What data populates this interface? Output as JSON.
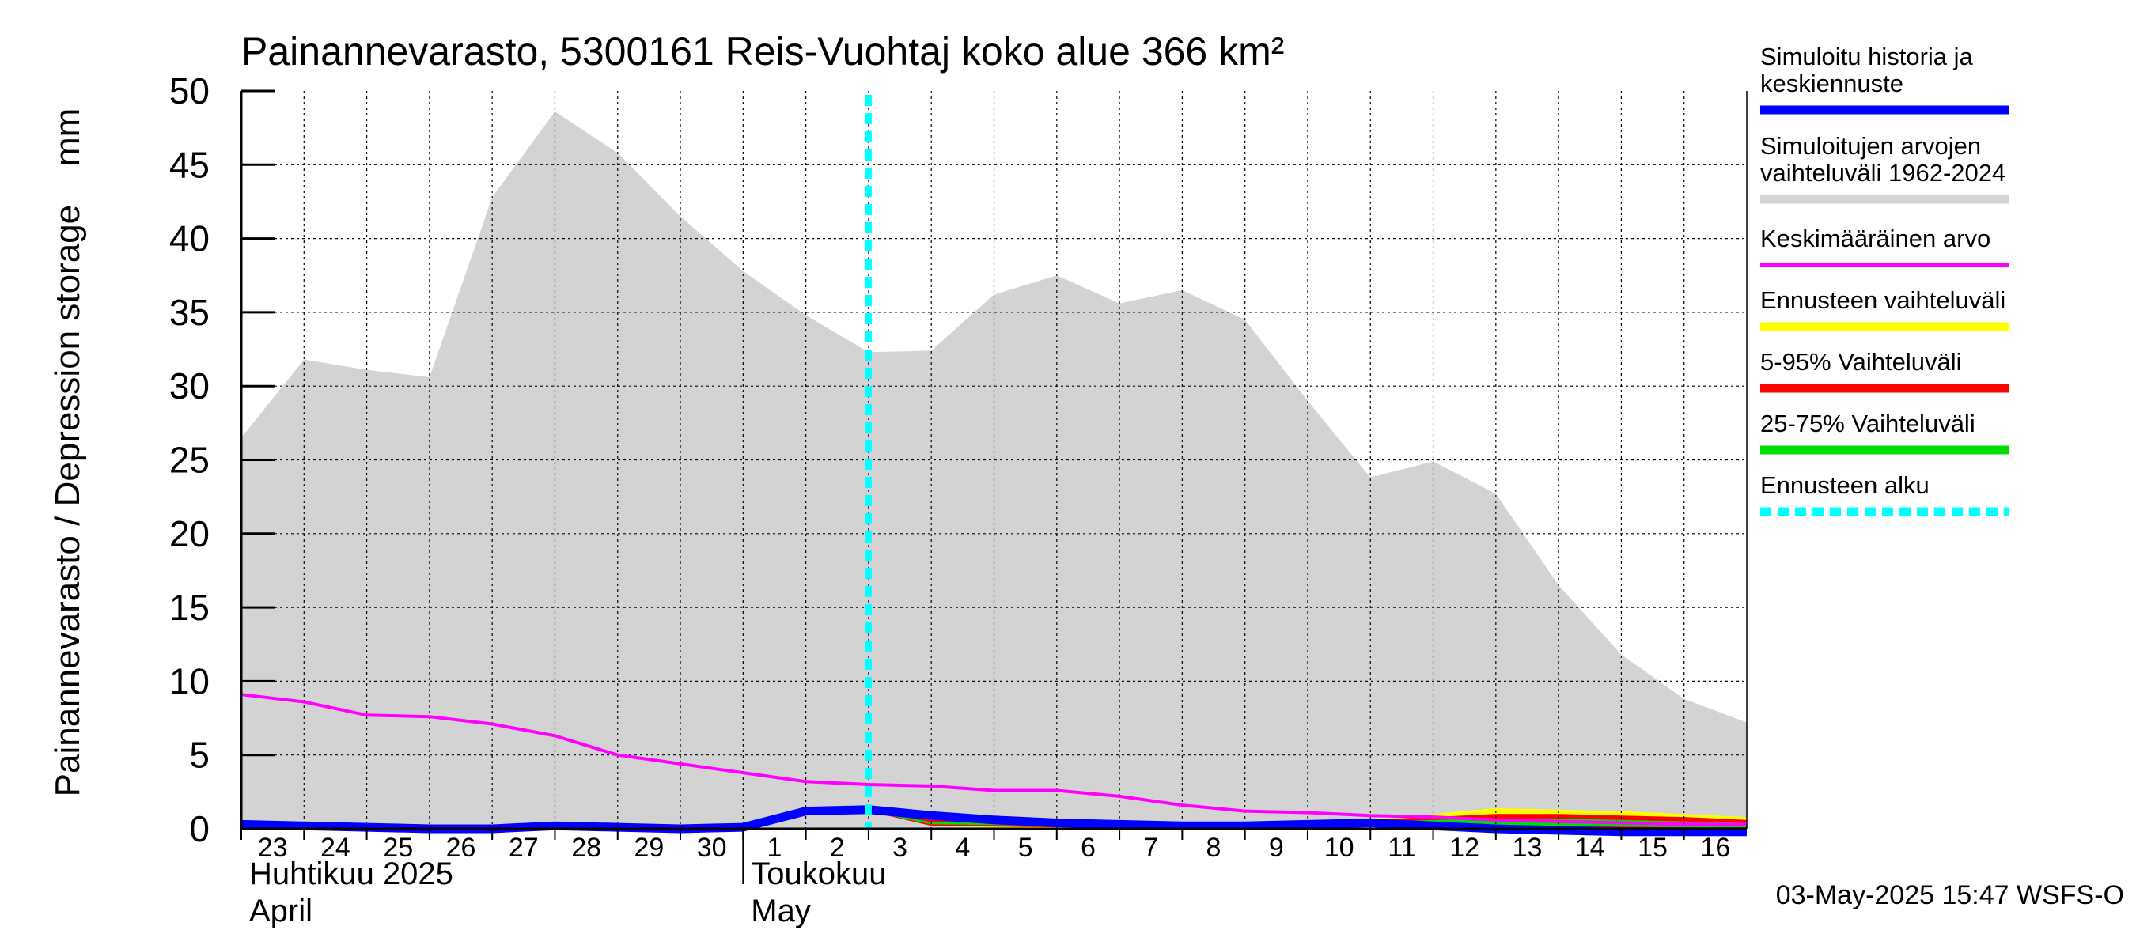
{
  "chart_data": {
    "type": "area",
    "title": "Painannevarasto, 5300161 Reis-Vuohtaj koko alue 366 km²",
    "ylabel": "Painannevarasto / Depression storage    mm",
    "ylim": [
      0,
      50
    ],
    "yticks": [
      0,
      5,
      10,
      15,
      20,
      25,
      30,
      35,
      40,
      45,
      50
    ],
    "grid": true,
    "xlim": [
      0,
      24
    ],
    "day_labels": [
      "23",
      "24",
      "25",
      "26",
      "27",
      "28",
      "29",
      "30",
      "1",
      "2",
      "3",
      "4",
      "5",
      "6",
      "7",
      "8",
      "9",
      "10",
      "11",
      "12",
      "13",
      "14",
      "15",
      "16"
    ],
    "month_labels": [
      {
        "fi": "Huhtikuu  2025",
        "en": "April",
        "start": 0
      },
      {
        "fi": "Toukokuu",
        "en": "May",
        "start": 8
      }
    ],
    "forecast_start": 10,
    "x": [
      0,
      1,
      2,
      3,
      4,
      5,
      6,
      7,
      8,
      9,
      10,
      11,
      12,
      13,
      14,
      15,
      16,
      17,
      18,
      19,
      20,
      21,
      22,
      23,
      24
    ],
    "series": [
      {
        "name": "Simuloitujen arvojen vaihteluväli 1962-2024",
        "type": "band",
        "color": "#d3d3d3",
        "upper": [
          26.5,
          31.8,
          31.1,
          30.6,
          42.8,
          48.6,
          45.8,
          41.5,
          37.8,
          34.8,
          32.3,
          32.4,
          36.2,
          37.5,
          35.6,
          36.5,
          34.5,
          29.0,
          23.8,
          24.9,
          22.7,
          16.5,
          11.8,
          8.8,
          7.2
        ],
        "lower": [
          0,
          0,
          0,
          0,
          0,
          0,
          0,
          0,
          0,
          0,
          0,
          0,
          0,
          0,
          0,
          0,
          0,
          0,
          0,
          0,
          0,
          0,
          0,
          0,
          0
        ]
      },
      {
        "name": "Ennusteen vaihteluväli",
        "type": "band",
        "color": "#ffff00",
        "x": [
          10,
          11,
          12,
          13,
          14,
          15,
          16,
          17,
          18,
          19,
          20,
          21,
          22,
          23,
          24
        ],
        "upper": [
          1.4,
          0.9,
          0.7,
          0.5,
          0.4,
          0.4,
          0.5,
          0.6,
          0.7,
          1.0,
          1.4,
          1.3,
          1.2,
          1.0,
          0.8
        ],
        "lower": [
          1.3,
          0.2,
          0.1,
          0.05,
          0.05,
          0.05,
          0.05,
          0.1,
          0.2,
          0.1,
          0.05,
          0.05,
          0.05,
          0.0,
          0.0
        ]
      },
      {
        "name": "5-95% Vaihteluväli",
        "type": "band",
        "color": "#ff0000",
        "x": [
          10,
          11,
          12,
          13,
          14,
          15,
          16,
          17,
          18,
          19,
          20,
          21,
          22,
          23,
          24
        ],
        "upper": [
          1.3,
          0.6,
          0.5,
          0.4,
          0.35,
          0.35,
          0.4,
          0.5,
          0.6,
          0.8,
          1.0,
          1.0,
          0.9,
          0.8,
          0.6
        ],
        "lower": [
          1.2,
          0.2,
          0.15,
          0.1,
          0.1,
          0.1,
          0.1,
          0.15,
          0.2,
          0.15,
          0.1,
          0.1,
          0.05,
          0.05,
          0.05
        ]
      },
      {
        "name": "25-75% Vaihteluväli",
        "type": "band",
        "color": "#00dd00",
        "x": [
          10,
          11,
          12,
          13,
          14,
          15,
          16,
          17,
          18,
          19,
          20,
          21,
          22,
          23,
          24
        ],
        "upper": [
          1.3,
          0.45,
          0.4,
          0.35,
          0.3,
          0.3,
          0.35,
          0.45,
          0.5,
          0.6,
          0.7,
          0.7,
          0.6,
          0.5,
          0.4
        ],
        "lower": [
          1.2,
          0.3,
          0.25,
          0.2,
          0.2,
          0.2,
          0.2,
          0.25,
          0.3,
          0.25,
          0.2,
          0.2,
          0.15,
          0.1,
          0.1
        ]
      },
      {
        "name": "Keskimääräinen arvo",
        "type": "line",
        "color": "#ff00ff",
        "values": [
          9.1,
          8.6,
          7.7,
          7.6,
          7.1,
          6.3,
          5.0,
          4.4,
          3.8,
          3.2,
          3.0,
          2.9,
          2.6,
          2.6,
          2.2,
          1.6,
          1.2,
          1.1,
          0.9,
          0.8,
          0.6,
          0.5,
          0.4,
          0.3,
          0.3
        ]
      },
      {
        "name": "Simuloitu historia ja keskiennuste",
        "type": "line",
        "color": "#0000ff",
        "values": [
          0.3,
          0.2,
          0.1,
          0.0,
          0.0,
          0.2,
          0.1,
          0.0,
          0.1,
          1.2,
          1.3,
          0.9,
          0.6,
          0.4,
          0.3,
          0.2,
          0.2,
          0.3,
          0.4,
          0.2,
          0.0,
          -0.1,
          -0.2,
          -0.2,
          -0.2
        ]
      }
    ],
    "legend": [
      {
        "label": [
          "Simuloitu historia ja",
          "keskiennuste"
        ],
        "color": "#0000ff",
        "style": "solid"
      },
      {
        "label": [
          "Simuloitujen arvojen",
          "vaihteluväli 1962-2024"
        ],
        "color": "#d3d3d3",
        "style": "solid"
      },
      {
        "label": [
          "Keskimääräinen arvo"
        ],
        "color": "#ff00ff",
        "style": "thin"
      },
      {
        "label": [
          "Ennusteen vaihteluväli"
        ],
        "color": "#ffff00",
        "style": "solid"
      },
      {
        "label": [
          "5-95% Vaihteluväli"
        ],
        "color": "#ff0000",
        "style": "solid"
      },
      {
        "label": [
          "25-75% Vaihteluväli"
        ],
        "color": "#00dd00",
        "style": "solid"
      },
      {
        "label": [
          "Ennusteen alku"
        ],
        "color": "#00ffff",
        "style": "dashed"
      }
    ],
    "legend_position": "right",
    "timestamp": "03-May-2025 15:47 WSFS-O"
  }
}
